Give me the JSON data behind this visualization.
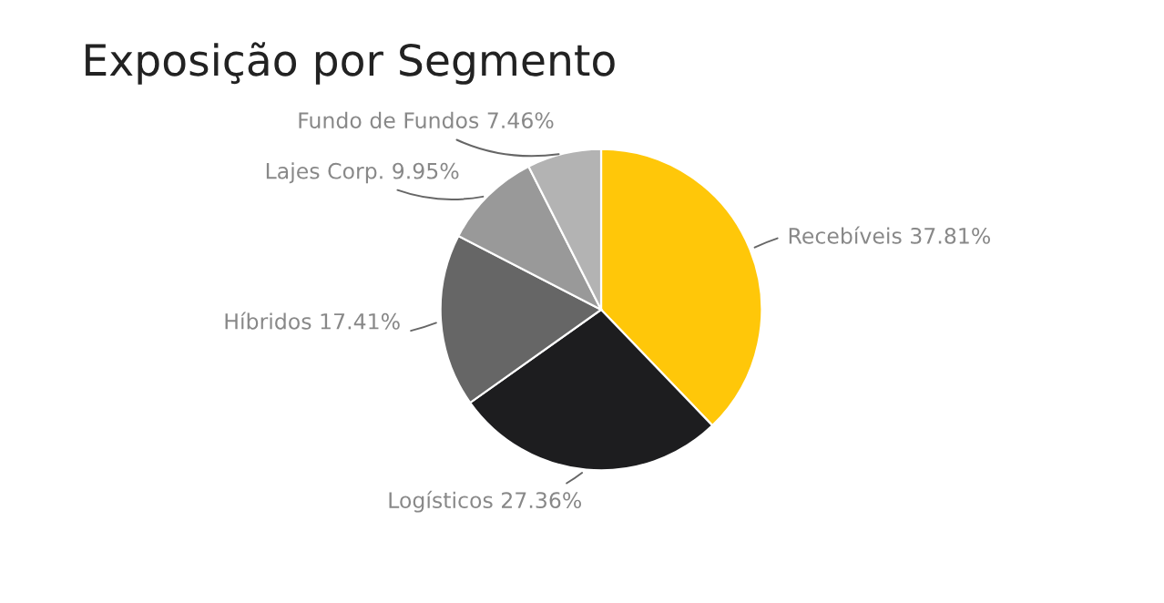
{
  "chart_data": {
    "type": "pie",
    "title": "Exposição por Segmento",
    "categories": [
      "Recebíveis",
      "Logísticos",
      "Híbridos",
      "Lajes Corp.",
      "Fundo de Fundos"
    ],
    "values": [
      37.81,
      27.36,
      17.41,
      9.95,
      7.46
    ],
    "value_labels": [
      "37.81%",
      "27.36%",
      "17.41%",
      "9.95%",
      "7.46%"
    ],
    "colors": [
      "#ffc709",
      "#1d1d1f",
      "#666666",
      "#999999",
      "#b3b3b3"
    ],
    "legend": false
  }
}
